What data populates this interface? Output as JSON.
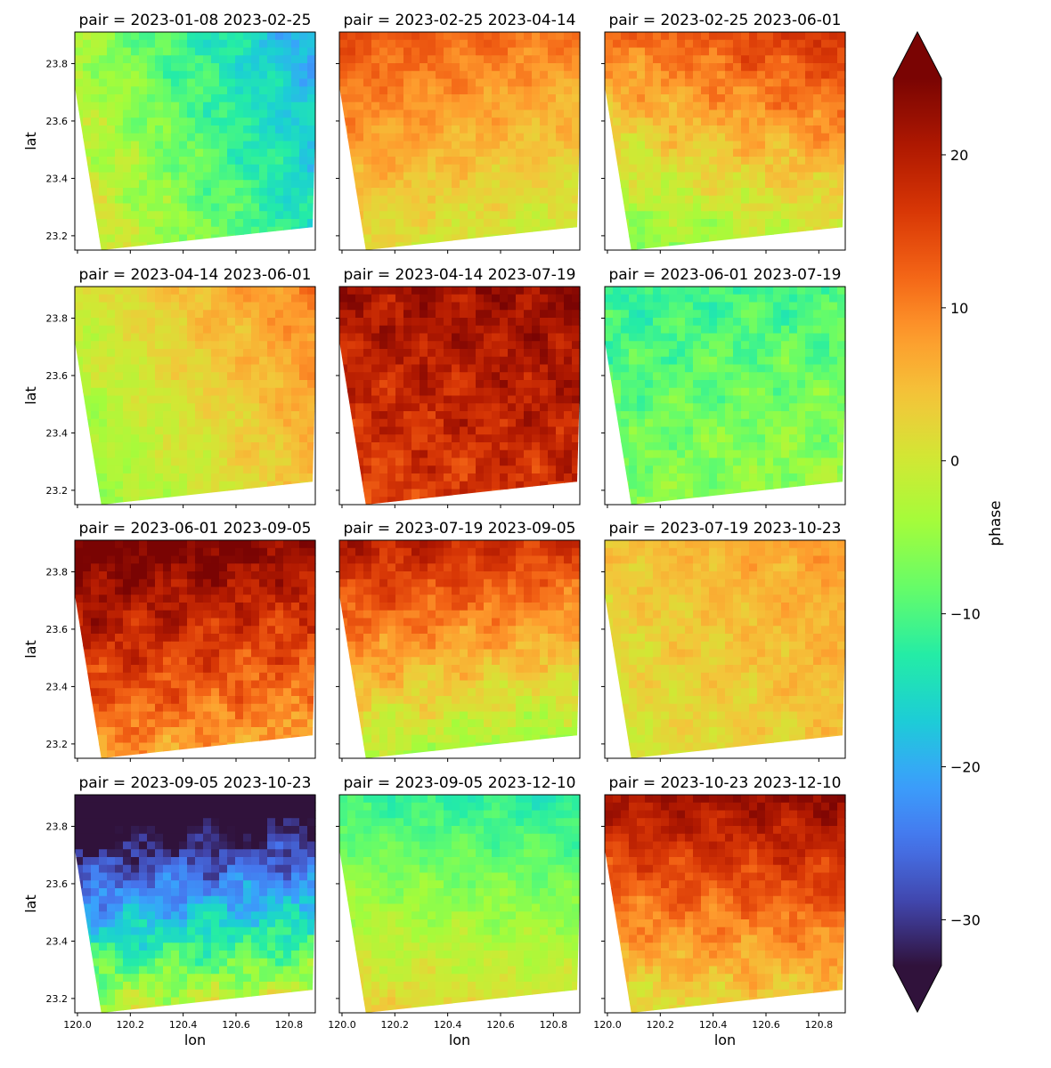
{
  "chart_data": {
    "type": "heatmap",
    "layout": {
      "rows": 4,
      "cols": 3
    },
    "xlabel": "lon",
    "ylabel": "lat",
    "xlim": [
      119.99,
      120.9
    ],
    "ylim": [
      23.15,
      23.91
    ],
    "xticks": [
      120.0,
      120.2,
      120.4,
      120.6,
      120.8
    ],
    "xtick_labels": [
      "120.0",
      "120.2",
      "120.4",
      "120.6",
      "120.8"
    ],
    "yticks": [
      23.2,
      23.4,
      23.6,
      23.8
    ],
    "ytick_labels": [
      "23.2",
      "23.4",
      "23.6",
      "23.8"
    ],
    "colorbar": {
      "label": "phase",
      "colormap": "turbo",
      "vmin": -33,
      "vmax": 25,
      "extend": "both",
      "ticks": [
        -30,
        -20,
        -10,
        0,
        10,
        20
      ],
      "tick_labels": [
        "−30",
        "−20",
        "−10",
        "0",
        "10",
        "20"
      ]
    },
    "footprint_lonlat": [
      [
        120.09,
        23.15
      ],
      [
        120.89,
        23.23
      ],
      [
        120.91,
        23.91
      ],
      [
        119.99,
        23.91
      ],
      [
        119.99,
        23.72
      ]
    ],
    "panels": [
      {
        "title": "pair = 2023-01-08 2023-02-25",
        "mean_phase": -9,
        "gradient_lon": -8,
        "gradient_lat": -3,
        "noise": 2.0
      },
      {
        "title": "pair = 2023-02-25 2023-04-14",
        "mean_phase": 6,
        "gradient_lon": -2,
        "gradient_lat": 6,
        "noise": 1.5
      },
      {
        "title": "pair = 2023-02-25 2023-06-01",
        "mean_phase": 5,
        "gradient_lon": 3,
        "gradient_lat": 9,
        "noise": 2.0
      },
      {
        "title": "pair = 2023-04-14 2023-06-01",
        "mean_phase": 2,
        "gradient_lon": 5,
        "gradient_lat": 3,
        "noise": 1.5
      },
      {
        "title": "pair = 2023-04-14 2023-07-19",
        "mean_phase": 19,
        "gradient_lon": 1,
        "gradient_lat": 3,
        "noise": 2.5
      },
      {
        "title": "pair = 2023-06-01 2023-07-19",
        "mean_phase": -8,
        "gradient_lon": 1,
        "gradient_lat": -3,
        "noise": 2.0
      },
      {
        "title": "pair = 2023-06-01 2023-09-05",
        "mean_phase": 16,
        "gradient_lon": -2,
        "gradient_lat": 9,
        "noise": 2.5
      },
      {
        "title": "pair = 2023-07-19 2023-09-05",
        "mean_phase": 7,
        "gradient_lon": -2,
        "gradient_lat": 11,
        "noise": 2.0
      },
      {
        "title": "pair = 2023-07-19 2023-10-23",
        "mean_phase": 4,
        "gradient_lon": 2,
        "gradient_lat": 2,
        "noise": 1.5
      },
      {
        "title": "pair = 2023-09-05 2023-10-23",
        "mean_phase": -20,
        "gradient_lon": 2,
        "gradient_lat": -20,
        "noise": 3.0
      },
      {
        "title": "pair = 2023-09-05 2023-12-10",
        "mean_phase": -5,
        "gradient_lon": -1,
        "gradient_lat": -7,
        "noise": 1.5
      },
      {
        "title": "pair = 2023-10-23 2023-12-10",
        "mean_phase": 12,
        "gradient_lon": 1,
        "gradient_lat": 10,
        "noise": 2.0
      }
    ]
  }
}
